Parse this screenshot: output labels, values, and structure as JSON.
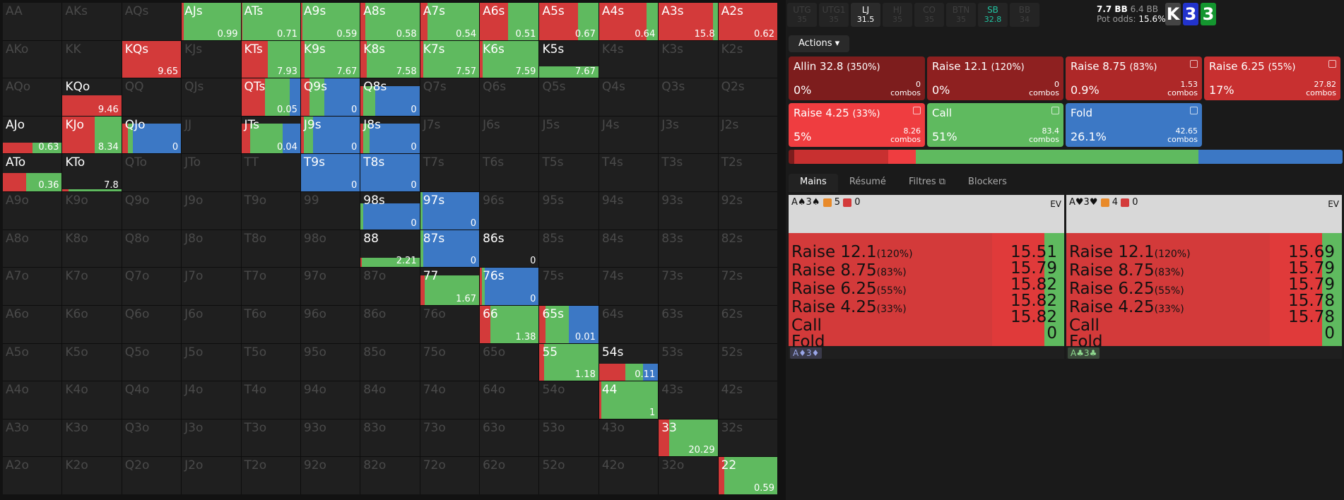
{
  "colors": {
    "red": "#d33a3a",
    "lightred": "#ef3d40",
    "green": "#5fba5f",
    "blue": "#3c78c5"
  },
  "grid": [
    [
      {
        "n": "AA"
      },
      {
        "n": "AKs"
      },
      {
        "n": "AQs"
      },
      {
        "n": "AJs",
        "ev": "0.99",
        "s": [
          [
            4,
            "#d33a3a"
          ],
          [
            96,
            "#5fba5f"
          ]
        ]
      },
      {
        "n": "ATs",
        "ev": "0.71",
        "s": [
          [
            2,
            "#d33a3a"
          ],
          [
            98,
            "#5fba5f"
          ]
        ]
      },
      {
        "n": "A9s",
        "ev": "0.59",
        "s": [
          [
            3,
            "#d33a3a"
          ],
          [
            97,
            "#5fba5f"
          ]
        ]
      },
      {
        "n": "A8s",
        "ev": "0.58",
        "s": [
          [
            8,
            "#d33a3a"
          ],
          [
            92,
            "#5fba5f"
          ]
        ]
      },
      {
        "n": "A7s",
        "ev": "0.54",
        "s": [
          [
            12,
            "#d33a3a"
          ],
          [
            88,
            "#5fba5f"
          ]
        ]
      },
      {
        "n": "A6s",
        "ev": "0.51",
        "s": [
          [
            48,
            "#d33a3a"
          ],
          [
            52,
            "#5fba5f"
          ]
        ]
      },
      {
        "n": "A5s",
        "ev": "0.67",
        "s": [
          [
            65,
            "#d33a3a"
          ],
          [
            35,
            "#5fba5f"
          ]
        ]
      },
      {
        "n": "A4s",
        "ev": "0.64",
        "s": [
          [
            80,
            "#d33a3a"
          ],
          [
            20,
            "#5fba5f"
          ]
        ]
      },
      {
        "n": "A3s",
        "ev": "15.8",
        "s": [
          [
            92,
            "#d33a3a"
          ],
          [
            8,
            "#5fba5f"
          ]
        ]
      },
      {
        "n": "A2s",
        "ev": "0.62",
        "s": [
          [
            100,
            "#d33a3a"
          ]
        ]
      }
    ],
    [
      {
        "n": "AKo"
      },
      {
        "n": "KK"
      },
      {
        "n": "KQs",
        "ev": "9.65",
        "s": [
          [
            100,
            "#d33a3a"
          ]
        ]
      },
      {
        "n": "KJs"
      },
      {
        "n": "KTs",
        "ev": "7.93",
        "s": [
          [
            45,
            "#d33a3a"
          ],
          [
            55,
            "#5fba5f"
          ]
        ]
      },
      {
        "n": "K9s",
        "ev": "7.67",
        "s": [
          [
            6,
            "#d33a3a"
          ],
          [
            94,
            "#5fba5f"
          ]
        ]
      },
      {
        "n": "K8s",
        "ev": "7.58",
        "s": [
          [
            10,
            "#d33a3a"
          ],
          [
            90,
            "#5fba5f"
          ]
        ]
      },
      {
        "n": "K7s",
        "ev": "7.57",
        "s": [
          [
            5,
            "#d33a3a"
          ],
          [
            95,
            "#5fba5f"
          ]
        ]
      },
      {
        "n": "K6s",
        "ev": "7.59",
        "s": [
          [
            5,
            "#d33a3a"
          ],
          [
            95,
            "#5fba5f"
          ]
        ]
      },
      {
        "n": "K5s",
        "ev": "7.67",
        "h": 30,
        "s": [
          [
            100,
            "#5fba5f"
          ]
        ]
      },
      {
        "n": "K4s"
      },
      {
        "n": "K3s"
      },
      {
        "n": "K2s"
      }
    ],
    [
      {
        "n": "AQo"
      },
      {
        "n": "KQo",
        "ev": "9.46",
        "h": 54,
        "s": [
          [
            100,
            "#d33a3a"
          ]
        ]
      },
      {
        "n": "QQ"
      },
      {
        "n": "QJs"
      },
      {
        "n": "QTs",
        "ev": "0.05",
        "s": [
          [
            40,
            "#d33a3a"
          ],
          [
            42,
            "#5fba5f"
          ],
          [
            18,
            "#3c78c5"
          ]
        ]
      },
      {
        "n": "Q9s",
        "ev": "0",
        "s": [
          [
            15,
            "#d33a3a"
          ],
          [
            25,
            "#5fba5f"
          ],
          [
            60,
            "#3c78c5"
          ]
        ]
      },
      {
        "n": "Q8s",
        "ev": "0",
        "h": 80,
        "s": [
          [
            5,
            "#d33a3a"
          ],
          [
            20,
            "#5fba5f"
          ],
          [
            75,
            "#3c78c5"
          ]
        ]
      },
      {
        "n": "Q7s"
      },
      {
        "n": "Q6s"
      },
      {
        "n": "Q5s"
      },
      {
        "n": "Q4s"
      },
      {
        "n": "Q3s"
      },
      {
        "n": "Q2s"
      }
    ],
    [
      {
        "n": "AJo",
        "ev": "0.63",
        "h": 30,
        "s": [
          [
            50,
            "#d33a3a"
          ],
          [
            50,
            "#5fba5f"
          ]
        ]
      },
      {
        "n": "KJo",
        "ev": "8.34",
        "s": [
          [
            55,
            "#d33a3a"
          ],
          [
            45,
            "#5fba5f"
          ]
        ]
      },
      {
        "n": "QJo",
        "ev": "0",
        "h": 80,
        "s": [
          [
            10,
            "#d33a3a"
          ],
          [
            8,
            "#5fba5f"
          ],
          [
            82,
            "#3c78c5"
          ]
        ]
      },
      {
        "n": "JJ"
      },
      {
        "n": "JTs",
        "ev": "0.04",
        "h": 80,
        "s": [
          [
            15,
            "#d33a3a"
          ],
          [
            55,
            "#5fba5f"
          ],
          [
            30,
            "#3c78c5"
          ]
        ]
      },
      {
        "n": "J9s",
        "ev": "0",
        "s": [
          [
            5,
            "#d33a3a"
          ],
          [
            15,
            "#5fba5f"
          ],
          [
            80,
            "#3c78c5"
          ]
        ]
      },
      {
        "n": "J8s",
        "ev": "0",
        "h": 80,
        "s": [
          [
            5,
            "#d33a3a"
          ],
          [
            10,
            "#5fba5f"
          ],
          [
            85,
            "#3c78c5"
          ]
        ]
      },
      {
        "n": "J7s"
      },
      {
        "n": "J6s"
      },
      {
        "n": "J5s"
      },
      {
        "n": "J4s"
      },
      {
        "n": "J3s"
      },
      {
        "n": "J2s"
      }
    ],
    [
      {
        "n": "ATo",
        "ev": "0.36",
        "h": 50,
        "s": [
          [
            40,
            "#d33a3a"
          ],
          [
            60,
            "#5fba5f"
          ]
        ]
      },
      {
        "n": "KTo",
        "ev": "7.8",
        "h": 6,
        "s": [
          [
            10,
            "#d33a3a"
          ],
          [
            90,
            "#5fba5f"
          ]
        ]
      },
      {
        "n": "QTo"
      },
      {
        "n": "JTo"
      },
      {
        "n": "TT"
      },
      {
        "n": "T9s",
        "ev": "0",
        "s": [
          [
            100,
            "#3c78c5"
          ]
        ]
      },
      {
        "n": "T8s",
        "ev": "0",
        "s": [
          [
            100,
            "#3c78c5"
          ]
        ]
      },
      {
        "n": "T7s"
      },
      {
        "n": "T6s"
      },
      {
        "n": "T5s"
      },
      {
        "n": "T4s"
      },
      {
        "n": "T3s"
      },
      {
        "n": "T2s"
      }
    ],
    [
      {
        "n": "A9o"
      },
      {
        "n": "K9o"
      },
      {
        "n": "Q9o"
      },
      {
        "n": "J9o"
      },
      {
        "n": "T9o"
      },
      {
        "n": "99"
      },
      {
        "n": "98s",
        "ev": "0",
        "h": 70,
        "s": [
          [
            4,
            "#5fba5f"
          ],
          [
            96,
            "#3c78c5"
          ]
        ]
      },
      {
        "n": "97s",
        "ev": "0",
        "s": [
          [
            4,
            "#5fba5f"
          ],
          [
            96,
            "#3c78c5"
          ]
        ]
      },
      {
        "n": "96s"
      },
      {
        "n": "95s"
      },
      {
        "n": "94s"
      },
      {
        "n": "93s"
      },
      {
        "n": "92s"
      }
    ],
    [
      {
        "n": "A8o"
      },
      {
        "n": "K8o"
      },
      {
        "n": "Q8o"
      },
      {
        "n": "J8o"
      },
      {
        "n": "T8o"
      },
      {
        "n": "98o"
      },
      {
        "n": "88",
        "ev": "2.21",
        "h": 25,
        "s": [
          [
            2,
            "#d33a3a"
          ],
          [
            98,
            "#5fba5f"
          ]
        ]
      },
      {
        "n": "87s",
        "ev": "0",
        "s": [
          [
            5,
            "#5fba5f"
          ],
          [
            95,
            "#3c78c5"
          ]
        ]
      },
      {
        "n": "86s",
        "ev": "0",
        "h": 0,
        "s": []
      },
      {
        "n": "85s"
      },
      {
        "n": "84s"
      },
      {
        "n": "83s"
      },
      {
        "n": "82s"
      }
    ],
    [
      {
        "n": "A7o"
      },
      {
        "n": "K7o"
      },
      {
        "n": "Q7o"
      },
      {
        "n": "J7o"
      },
      {
        "n": "T7o"
      },
      {
        "n": "97o"
      },
      {
        "n": "87o"
      },
      {
        "n": "77",
        "ev": "1.67",
        "h": 80,
        "s": [
          [
            8,
            "#d33a3a"
          ],
          [
            92,
            "#5fba5f"
          ]
        ]
      },
      {
        "n": "76s",
        "ev": "0",
        "s": [
          [
            3,
            "#d33a3a"
          ],
          [
            5,
            "#5fba5f"
          ],
          [
            92,
            "#3c78c5"
          ]
        ]
      },
      {
        "n": "75s"
      },
      {
        "n": "74s"
      },
      {
        "n": "73s"
      },
      {
        "n": "72s"
      }
    ],
    [
      {
        "n": "A6o"
      },
      {
        "n": "K6o"
      },
      {
        "n": "Q6o"
      },
      {
        "n": "J6o"
      },
      {
        "n": "T6o"
      },
      {
        "n": "96o"
      },
      {
        "n": "86o"
      },
      {
        "n": "76o"
      },
      {
        "n": "66",
        "ev": "1.38",
        "s": [
          [
            18,
            "#d33a3a"
          ],
          [
            82,
            "#5fba5f"
          ]
        ]
      },
      {
        "n": "65s",
        "ev": "0.01",
        "s": [
          [
            10,
            "#d33a3a"
          ],
          [
            40,
            "#5fba5f"
          ],
          [
            50,
            "#3c78c5"
          ]
        ]
      },
      {
        "n": "64s"
      },
      {
        "n": "63s"
      },
      {
        "n": "62s"
      }
    ],
    [
      {
        "n": "A5o"
      },
      {
        "n": "K5o"
      },
      {
        "n": "Q5o"
      },
      {
        "n": "J5o"
      },
      {
        "n": "T5o"
      },
      {
        "n": "95o"
      },
      {
        "n": "85o"
      },
      {
        "n": "75o"
      },
      {
        "n": "65o"
      },
      {
        "n": "55",
        "ev": "1.18",
        "s": [
          [
            8,
            "#d33a3a"
          ],
          [
            92,
            "#5fba5f"
          ]
        ]
      },
      {
        "n": "54s",
        "ev": "0.11",
        "h": 45,
        "s": [
          [
            45,
            "#d33a3a"
          ],
          [
            30,
            "#5fba5f"
          ],
          [
            25,
            "#3c78c5"
          ]
        ]
      },
      {
        "n": "53s"
      },
      {
        "n": "52s"
      }
    ],
    [
      {
        "n": "A4o"
      },
      {
        "n": "K4o"
      },
      {
        "n": "Q4o"
      },
      {
        "n": "J4o"
      },
      {
        "n": "T4o"
      },
      {
        "n": "94o"
      },
      {
        "n": "84o"
      },
      {
        "n": "74o"
      },
      {
        "n": "64o"
      },
      {
        "n": "54o"
      },
      {
        "n": "44",
        "ev": "1",
        "s": [
          [
            4,
            "#d33a3a"
          ],
          [
            96,
            "#5fba5f"
          ]
        ]
      },
      {
        "n": "43s"
      },
      {
        "n": "42s"
      }
    ],
    [
      {
        "n": "A3o"
      },
      {
        "n": "K3o"
      },
      {
        "n": "Q3o"
      },
      {
        "n": "J3o"
      },
      {
        "n": "T3o"
      },
      {
        "n": "93o"
      },
      {
        "n": "83o"
      },
      {
        "n": "73o"
      },
      {
        "n": "63o"
      },
      {
        "n": "53o"
      },
      {
        "n": "43o"
      },
      {
        "n": "33",
        "ev": "20.29",
        "s": [
          [
            18,
            "#d33a3a"
          ],
          [
            82,
            "#5fba5f"
          ]
        ]
      },
      {
        "n": "32s"
      }
    ],
    [
      {
        "n": "A2o"
      },
      {
        "n": "K2o"
      },
      {
        "n": "Q2o"
      },
      {
        "n": "J2o"
      },
      {
        "n": "T2o"
      },
      {
        "n": "92o"
      },
      {
        "n": "82o"
      },
      {
        "n": "72o"
      },
      {
        "n": "62o"
      },
      {
        "n": "52o"
      },
      {
        "n": "42o"
      },
      {
        "n": "32o"
      },
      {
        "n": "22",
        "ev": "0.59",
        "s": [
          [
            10,
            "#d33a3a"
          ],
          [
            90,
            "#5fba5f"
          ]
        ]
      }
    ]
  ],
  "positions": [
    {
      "n": "UTG",
      "v": "35"
    },
    {
      "n": "UTG1",
      "v": "35"
    },
    {
      "n": "LJ",
      "v": "31.5"
    },
    {
      "n": "HJ",
      "v": "35"
    },
    {
      "n": "CO",
      "v": "35"
    },
    {
      "n": "BTN",
      "v": "35"
    },
    {
      "n": "SB",
      "v": "32.8"
    },
    {
      "n": "BB",
      "v": "34"
    }
  ],
  "pot": {
    "bb1": "7.7 BB",
    "bb2": "6.4 BB",
    "label": "Pot odds:",
    "odds": "15.6%"
  },
  "board": [
    {
      "r": "K",
      "c": "#444"
    },
    {
      "r": "3",
      "c": "#2233cc"
    },
    {
      "r": "3",
      "c": "#14962f"
    }
  ],
  "actions_label": "Actions",
  "actions": [
    {
      "t": "Allin 32.8",
      "s": "(350%)",
      "p": "0%",
      "c": "0",
      "u": "combos",
      "bg": "#7d1d1d"
    },
    {
      "t": "Raise 12.1",
      "s": "(120%)",
      "p": "0%",
      "c": "0",
      "u": "combos",
      "bg": "#8e2020"
    },
    {
      "t": "Raise 8.75",
      "s": "(83%)",
      "p": "0.9%",
      "c": "1.53",
      "u": "combos",
      "bg": "#ae2828"
    },
    {
      "t": "Raise 6.25",
      "s": "(55%)",
      "p": "17%",
      "c": "27.82",
      "u": "combos",
      "bg": "#c83030"
    },
    {
      "t": "Raise 4.25",
      "s": "(33%)",
      "p": "5%",
      "c": "8.26",
      "u": "combos",
      "bg": "#ef3d40"
    },
    {
      "t": "Call",
      "s": "",
      "p": "51%",
      "c": "83.4",
      "u": "combos",
      "bg": "#5fba5f"
    },
    {
      "t": "Fold",
      "s": "",
      "p": "26.1%",
      "c": "42.65",
      "u": "combos",
      "bg": "#3c78c5"
    }
  ],
  "freq": [
    [
      1,
      "#7d1d1d"
    ],
    [
      17,
      "#c83030"
    ],
    [
      5,
      "#ef3d40"
    ],
    [
      51,
      "#5fba5f"
    ],
    [
      26.1,
      "#3c78c5"
    ]
  ],
  "tabs": [
    "Mains",
    "Résumé",
    "Filtres",
    "Blockers"
  ],
  "hands": [
    {
      "cards": "A♠3♠",
      "b1": "5",
      "b2": "0",
      "ev": "EV",
      "foot": "A♦3♦",
      "fb": "#3a3a4a",
      "fc": "#9aa6e8",
      "rows": [
        [
          "Raise 12.1",
          "(120%)",
          "15.51"
        ],
        [
          "Raise 8.75",
          "(83%)",
          "15.79"
        ],
        [
          "Raise 6.25",
          "(55%)",
          "15.82"
        ],
        [
          "Raise 4.25",
          "(33%)",
          "15.82"
        ],
        [
          "Call",
          "",
          "15.82"
        ],
        [
          "Fold",
          "",
          "0"
        ]
      ]
    },
    {
      "cards": "A♥3♥",
      "b1": "4",
      "b2": "0",
      "ev": "EV",
      "foot": "A♣3♣",
      "fb": "#3a4a3a",
      "fc": "#8fd98f",
      "rows": [
        [
          "Raise 12.1",
          "(120%)",
          "15.69"
        ],
        [
          "Raise 8.75",
          "(83%)",
          "15.79"
        ],
        [
          "Raise 6.25",
          "(55%)",
          "15.79"
        ],
        [
          "Raise 4.25",
          "(33%)",
          "15.78"
        ],
        [
          "Call",
          "",
          "15.78"
        ],
        [
          "Fold",
          "",
          "0"
        ]
      ]
    }
  ]
}
